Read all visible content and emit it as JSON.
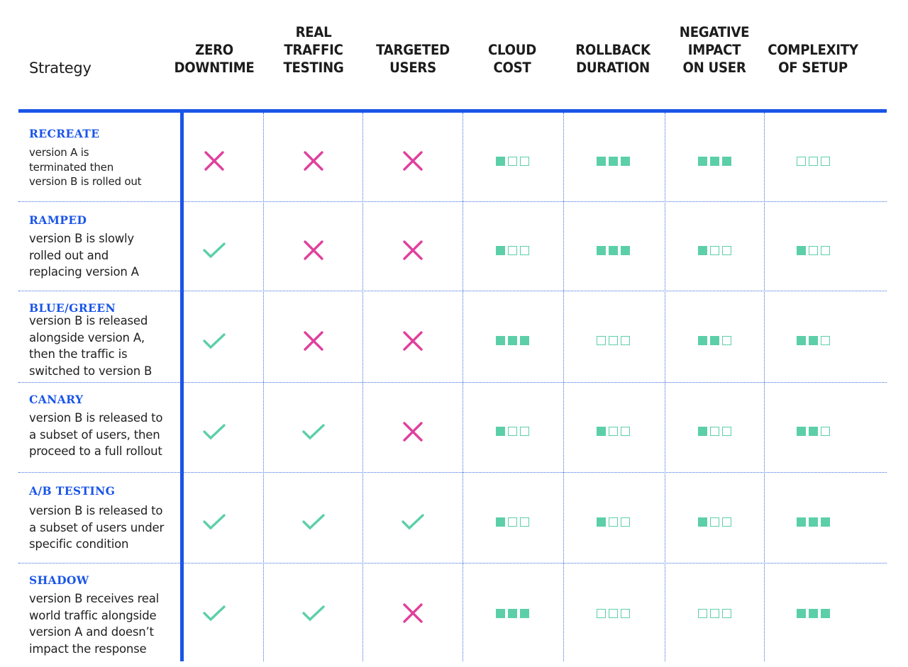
{
  "header": {
    "strategy": "Strategy",
    "columns": [
      {
        "key": "zero_downtime",
        "label": "ZERO\nDOWNTIME"
      },
      {
        "key": "real_traffic_testing",
        "label": "REAL\nTRAFFIC\nTESTING"
      },
      {
        "key": "targeted_users",
        "label": "TARGETED\nUSERS"
      },
      {
        "key": "cloud_cost",
        "label": "CLOUD\nCOST"
      },
      {
        "key": "rollback_duration",
        "label": "ROLLBACK\nDURATION"
      },
      {
        "key": "negative_impact",
        "label": "NEGATIVE\nIMPACT\nON USER"
      },
      {
        "key": "complexity",
        "label": "COMPLEXITY\nOF SETUP"
      }
    ]
  },
  "rows": [
    {
      "name": "RECREATE",
      "description": "version A is\nterminated then\nversion B is rolled out",
      "zero_downtime": "no",
      "real_traffic_testing": "no",
      "targeted_users": "no",
      "cloud_cost": 1,
      "rollback_duration": 3,
      "negative_impact": 3,
      "complexity": 0
    },
    {
      "name": "RAMPED",
      "description": "version B is slowly\nrolled out and\nreplacing version A",
      "zero_downtime": "yes",
      "real_traffic_testing": "no",
      "targeted_users": "no",
      "cloud_cost": 1,
      "rollback_duration": 3,
      "negative_impact": 1,
      "complexity": 1
    },
    {
      "name": "BLUE/GREEN",
      "description": "version B is released\nalongside version A,\nthen the traffic is\nswitched to version B",
      "zero_downtime": "yes",
      "real_traffic_testing": "no",
      "targeted_users": "no",
      "cloud_cost": 3,
      "rollback_duration": 0,
      "negative_impact": 2,
      "complexity": 2
    },
    {
      "name": "CANARY",
      "description": "version B is released to\na subset of users, then\nproceed to a full rollout",
      "zero_downtime": "yes",
      "real_traffic_testing": "yes",
      "targeted_users": "no",
      "cloud_cost": 1,
      "rollback_duration": 1,
      "negative_impact": 1,
      "complexity": 2
    },
    {
      "name": "A/B TESTING",
      "description": "version B is released to\na subset of users under\nspecific condition",
      "zero_downtime": "yes",
      "real_traffic_testing": "yes",
      "targeted_users": "yes",
      "cloud_cost": 1,
      "rollback_duration": 1,
      "negative_impact": 1,
      "complexity": 3
    },
    {
      "name": "SHADOW",
      "description": "version B receives real\nworld traffic alongside\nversion A and doesn’t\nimpact the response",
      "zero_downtime": "yes",
      "real_traffic_testing": "yes",
      "targeted_users": "no",
      "cloud_cost": 3,
      "rollback_duration": 0,
      "negative_impact": 0,
      "complexity": 3
    }
  ],
  "rating_scale_max": 3,
  "colors": {
    "accent_blue": "#1a55e8",
    "check_green": "#5ccfa8",
    "cross_pink": "#e0409c"
  },
  "icons": {
    "yes": "check-icon",
    "no": "cross-icon"
  }
}
